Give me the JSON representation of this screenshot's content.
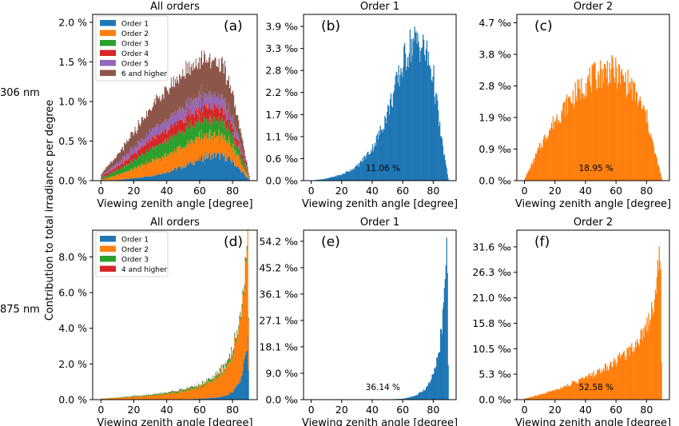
{
  "figure": {
    "ylabel_shared": "Contribution to total irradiance per degree",
    "row_labels": [
      "306 nm",
      "875 nm"
    ]
  },
  "colors": {
    "order1": "#1f77b4",
    "order2": "#ff7f0e",
    "order3": "#2ca02c",
    "order4": "#d62728",
    "order5": "#9467bd",
    "order6": "#8c564b"
  },
  "chart_data": [
    {
      "id": "a",
      "type": "area",
      "stacked": true,
      "title": "All orders",
      "tag": "(a)",
      "xlabel": "Viewing zenith angle [degree]",
      "ylabel": "",
      "xlim": [
        -5,
        95
      ],
      "ylim": [
        0,
        2.1
      ],
      "xticks": [
        "0",
        "20",
        "40",
        "60",
        "80"
      ],
      "xtick_values": [
        0,
        20,
        40,
        60,
        80
      ],
      "yticks": [
        "0.0 %",
        "0.5 %",
        "1.0 %",
        "1.5 %",
        "2.0 %"
      ],
      "ytick_values": [
        0,
        0.5,
        1.0,
        1.5,
        2.0
      ],
      "legend": [
        "Order 1",
        "Order 2",
        "Order 3",
        "Order 4",
        "Order 5",
        "6 and higher"
      ],
      "legend_position": "upper-left",
      "x": [
        0,
        10,
        20,
        30,
        40,
        50,
        60,
        65,
        70,
        75,
        80,
        85,
        90
      ],
      "series": [
        {
          "name": "Order 1",
          "values": [
            0.0,
            0.01,
            0.03,
            0.06,
            0.11,
            0.18,
            0.27,
            0.31,
            0.32,
            0.3,
            0.24,
            0.12,
            0.01
          ]
        },
        {
          "name": "Order 2",
          "values": [
            0.01,
            0.06,
            0.12,
            0.18,
            0.22,
            0.25,
            0.27,
            0.27,
            0.26,
            0.24,
            0.19,
            0.1,
            0.01
          ]
        },
        {
          "name": "Order 3",
          "values": [
            0.02,
            0.06,
            0.11,
            0.15,
            0.18,
            0.2,
            0.21,
            0.21,
            0.2,
            0.18,
            0.14,
            0.08,
            0.01
          ]
        },
        {
          "name": "Order 4",
          "values": [
            0.02,
            0.05,
            0.09,
            0.12,
            0.14,
            0.16,
            0.17,
            0.17,
            0.16,
            0.14,
            0.11,
            0.06,
            0.01
          ]
        },
        {
          "name": "Order 5",
          "values": [
            0.01,
            0.04,
            0.07,
            0.1,
            0.12,
            0.13,
            0.14,
            0.14,
            0.13,
            0.12,
            0.09,
            0.05,
            0.0
          ]
        },
        {
          "name": "6 and higher",
          "values": [
            0.03,
            0.1,
            0.2,
            0.3,
            0.38,
            0.43,
            0.46,
            0.46,
            0.44,
            0.4,
            0.32,
            0.18,
            0.02
          ]
        }
      ]
    },
    {
      "id": "b",
      "type": "bar",
      "title": "Order 1",
      "tag": "(b)",
      "xlabel": "Viewing zenith angle [degree]",
      "ylabel": "",
      "xlim": [
        -5,
        95
      ],
      "ylim": [
        0,
        4.15
      ],
      "color": "#1f77b4",
      "xticks": [
        "0",
        "20",
        "40",
        "60",
        "80"
      ],
      "xtick_values": [
        0,
        20,
        40,
        60,
        80
      ],
      "yticks": [
        "0.0 ‰",
        "0.6 ‰",
        "1.1 ‰",
        "1.7 ‰",
        "2.2 ‰",
        "2.8 ‰",
        "3.3 ‰",
        "3.9 ‰"
      ],
      "ytick_values": [
        0,
        0.55,
        1.1,
        1.65,
        2.2,
        2.75,
        3.3,
        3.85
      ],
      "annotation": "11.06 %",
      "x": [
        0,
        10,
        20,
        30,
        40,
        45,
        50,
        55,
        60,
        65,
        70,
        75,
        80,
        85,
        90
      ],
      "values": [
        0.0,
        0.05,
        0.15,
        0.35,
        0.8,
        1.2,
        1.7,
        2.3,
        2.9,
        3.4,
        3.5,
        3.2,
        2.6,
        1.1,
        0.0
      ]
    },
    {
      "id": "c",
      "type": "bar",
      "title": "Order 2",
      "tag": "(c)",
      "xlabel": "Viewing zenith angle [degree]",
      "ylabel": "",
      "xlim": [
        -5,
        95
      ],
      "ylim": [
        0,
        4.95
      ],
      "color": "#ff7f0e",
      "xticks": [
        "0",
        "20",
        "40",
        "60",
        "80"
      ],
      "xtick_values": [
        0,
        20,
        40,
        60,
        80
      ],
      "yticks": [
        "0.0 ‰",
        "0.9 ‰",
        "1.9 ‰",
        "2.8 ‰",
        "3.8 ‰",
        "4.7 ‰"
      ],
      "ytick_values": [
        0,
        0.94,
        1.88,
        2.82,
        3.76,
        4.7
      ],
      "annotation": "18.95 %",
      "x": [
        0,
        5,
        10,
        20,
        30,
        40,
        50,
        55,
        60,
        70,
        80,
        85,
        90
      ],
      "values": [
        0.05,
        0.5,
        1.0,
        1.8,
        2.4,
        2.9,
        3.2,
        3.3,
        3.2,
        2.8,
        1.9,
        0.9,
        0.05
      ]
    },
    {
      "id": "d",
      "type": "area",
      "stacked": true,
      "title": "All orders",
      "tag": "(d)",
      "xlabel": "Viewing zenith angle [degree]",
      "ylabel": "",
      "xlim": [
        -5,
        95
      ],
      "ylim": [
        0,
        9.5
      ],
      "xticks": [
        "0",
        "20",
        "40",
        "60",
        "80"
      ],
      "xtick_values": [
        0,
        20,
        40,
        60,
        80
      ],
      "yticks": [
        "0.0 %",
        "2.0 %",
        "4.0 %",
        "6.0 %",
        "8.0 %"
      ],
      "ytick_values": [
        0,
        2,
        4,
        6,
        8
      ],
      "legend": [
        "Order 1",
        "Order 2",
        "Order 3",
        "4 and higher"
      ],
      "legend_position": "upper-left",
      "x": [
        0,
        10,
        20,
        30,
        40,
        50,
        60,
        70,
        75,
        80,
        84,
        86,
        88,
        89,
        90
      ],
      "series": [
        {
          "name": "Order 1",
          "values": [
            0.0,
            0.0,
            0.0,
            0.0,
            0.01,
            0.02,
            0.05,
            0.12,
            0.2,
            0.45,
            1.0,
            1.6,
            2.6,
            3.6,
            0.0
          ]
        },
        {
          "name": "Order 2",
          "values": [
            0.05,
            0.1,
            0.15,
            0.22,
            0.32,
            0.45,
            0.65,
            1.1,
            1.5,
            2.2,
            3.2,
            4.0,
            5.0,
            5.2,
            0.0
          ]
        },
        {
          "name": "Order 3",
          "values": [
            0.01,
            0.02,
            0.04,
            0.05,
            0.07,
            0.09,
            0.12,
            0.15,
            0.18,
            0.2,
            0.2,
            0.2,
            0.2,
            0.2,
            0.0
          ]
        },
        {
          "name": "4 and higher",
          "values": [
            0.0,
            0.0,
            0.01,
            0.01,
            0.01,
            0.02,
            0.02,
            0.03,
            0.03,
            0.04,
            0.04,
            0.04,
            0.04,
            0.04,
            0.0
          ]
        }
      ]
    },
    {
      "id": "e",
      "type": "bar",
      "title": "Order 1",
      "tag": "(e)",
      "xlabel": "Viewing zenith angle [degree]",
      "ylabel": "",
      "xlim": [
        -5,
        95
      ],
      "ylim": [
        0,
        58
      ],
      "color": "#1f77b4",
      "xticks": [
        "0",
        "20",
        "40",
        "60",
        "80"
      ],
      "xtick_values": [
        0,
        20,
        40,
        60,
        80
      ],
      "yticks": [
        "0.0 ‰",
        "9.0 ‰",
        "18.1 ‰",
        "27.1 ‰",
        "36.1 ‰",
        "45.2 ‰",
        "54.2 ‰"
      ],
      "ytick_values": [
        0,
        9.03,
        18.07,
        27.1,
        36.14,
        45.17,
        54.2
      ],
      "annotation": "36.14 %",
      "x": [
        0,
        40,
        50,
        60,
        65,
        70,
        75,
        78,
        80,
        82,
        84,
        86,
        87,
        88,
        89,
        90
      ],
      "values": [
        0,
        0.01,
        0.05,
        0.3,
        0.8,
        1.8,
        3.8,
        6,
        8.5,
        12,
        18,
        27,
        33,
        42,
        55,
        0
      ]
    },
    {
      "id": "f",
      "type": "bar",
      "title": "Order 2",
      "tag": "(f)",
      "xlabel": "Viewing zenith angle [degree]",
      "ylabel": "",
      "xlim": [
        -5,
        95
      ],
      "ylim": [
        0,
        35
      ],
      "color": "#ff7f0e",
      "xticks": [
        "0",
        "20",
        "40",
        "60",
        "80"
      ],
      "xtick_values": [
        0,
        20,
        40,
        60,
        80
      ],
      "yticks": [
        "0.0 ‰",
        "5.3 ‰",
        "10.5 ‰",
        "15.8 ‰",
        "21.0 ‰",
        "26.3 ‰",
        "31.6 ‰"
      ],
      "ytick_values": [
        0,
        5.26,
        10.52,
        15.78,
        21.04,
        26.3,
        31.56
      ],
      "annotation": "52.58 %",
      "x": [
        0,
        10,
        20,
        30,
        40,
        50,
        60,
        70,
        75,
        80,
        84,
        86,
        88,
        89,
        90
      ],
      "values": [
        0.2,
        1.0,
        2.0,
        3.2,
        4.5,
        6.0,
        8.0,
        10.5,
        12.5,
        15.5,
        19,
        23,
        29,
        33,
        0
      ]
    }
  ]
}
